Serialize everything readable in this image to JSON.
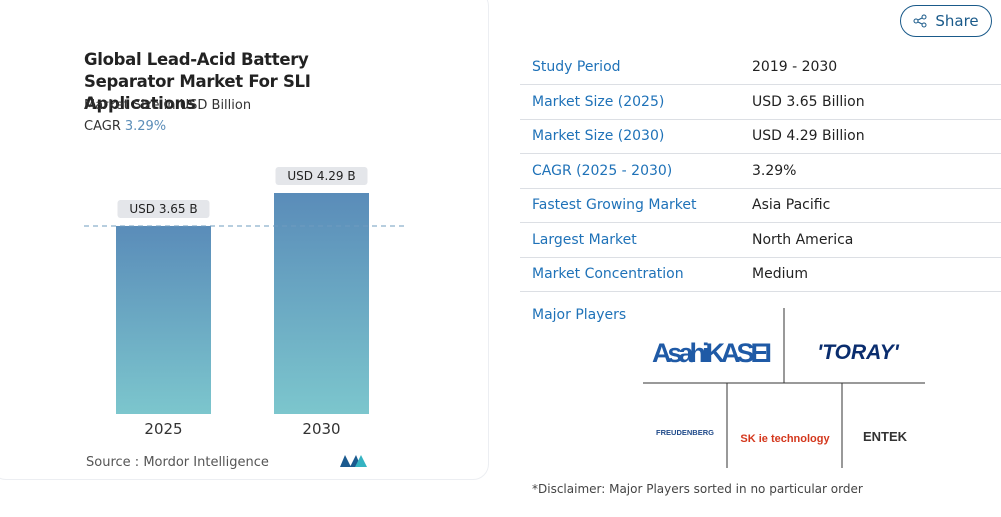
{
  "chart_data": {
    "type": "bar",
    "title": "Global Lead-Acid Battery Separator Market For SLI Applications",
    "subtitle": "Market Size in USD Billion",
    "cagr_label": "CAGR",
    "cagr_value": "3.29%",
    "categories": [
      "2025",
      "2030"
    ],
    "values": [
      3.65,
      4.29
    ],
    "value_labels": [
      "USD 3.65 B",
      "USD 4.29 B"
    ],
    "source_label": "Source :",
    "source": "Mordor Intelligence"
  },
  "share_button": "Share",
  "table": {
    "rows": [
      [
        "Study Period",
        "2019 - 2030"
      ],
      [
        "Market Size (2025)",
        "USD 3.65 Billion"
      ],
      [
        "Market Size (2030)",
        "USD 4.29 Billion"
      ],
      [
        "CAGR (2025 - 2030)",
        "3.29%"
      ],
      [
        "Fastest Growing Market",
        "Asia Pacific"
      ],
      [
        "Largest Market",
        "North America"
      ],
      [
        "Market Concentration",
        "Medium"
      ]
    ]
  },
  "major_players": {
    "title": "Major Players",
    "logos": [
      "AsahiKASEI",
      "'TORAY'",
      "FREUDENBERG",
      "SK ie technology",
      "ENTEK"
    ]
  },
  "disclaimer": "*Disclaimer: Major Players sorted in no particular order"
}
